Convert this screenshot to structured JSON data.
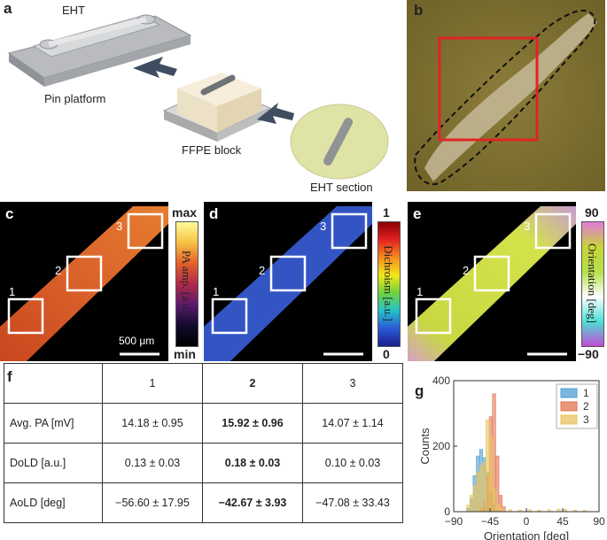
{
  "panel_a": {
    "label": "a",
    "eht": "EHT",
    "pin_platform": "Pin platform",
    "ffpe_block": "FFPE block",
    "eht_section": "EHT section"
  },
  "panel_b": {
    "label": "b"
  },
  "panel_c": {
    "label": "c",
    "roi": [
      "1",
      "2",
      "3"
    ],
    "cb_max": "max",
    "cb_min": "min",
    "cb_label": "PA amp. [a.u.]",
    "scalebar": "500 μm"
  },
  "panel_d": {
    "label": "d",
    "roi": [
      "1",
      "2",
      "3"
    ],
    "cb_max": "1",
    "cb_min": "0",
    "cb_label": "Dichroism [a.u.]"
  },
  "panel_e": {
    "label": "e",
    "roi": [
      "1",
      "2",
      "3"
    ],
    "cb_max": "90",
    "cb_min": "−90",
    "cb_label": "Orientation [deg]"
  },
  "panel_f": {
    "label": "f",
    "header": [
      "",
      "1",
      "2",
      "3"
    ],
    "rows": [
      [
        "Avg. PA [mV]",
        "14.18 ± 0.95",
        "15.92 ± 0.96",
        "14.07 ± 1.14"
      ],
      [
        "DoLD [a.u.]",
        "0.13 ± 0.03",
        "0.18 ± 0.03",
        "0.10 ± 0.03"
      ],
      [
        "AoLD [deg]",
        "−56.60 ± 17.95",
        "−42.67 ± 3.93",
        "−47.08 ± 33.43"
      ]
    ]
  },
  "panel_g": {
    "label": "g"
  },
  "chart_data": {
    "type": "bar",
    "xlabel": "Orientation [deg]",
    "ylabel": "Counts",
    "xlim": [
      -90,
      90
    ],
    "ylim": [
      0,
      400
    ],
    "xticks": [
      "−90",
      "−45",
      "0",
      "45",
      "90"
    ],
    "yticks": [
      "0",
      "200",
      "400"
    ],
    "legend_position": "top-right",
    "bin_width": 4,
    "series": [
      {
        "name": "1",
        "color": "#4f9fd3",
        "bins": [
          [
            -74,
            10
          ],
          [
            -70,
            40
          ],
          [
            -66,
            110
          ],
          [
            -62,
            170
          ],
          [
            -58,
            190
          ],
          [
            -54,
            165
          ],
          [
            -50,
            120
          ],
          [
            -46,
            60
          ],
          [
            -42,
            20
          ],
          [
            -38,
            5
          ]
        ]
      },
      {
        "name": "2",
        "color": "#e0744f",
        "bins": [
          [
            -58,
            10
          ],
          [
            -54,
            30
          ],
          [
            -50,
            110
          ],
          [
            -46,
            290
          ],
          [
            -42,
            360
          ],
          [
            -38,
            170
          ],
          [
            -34,
            50
          ],
          [
            -30,
            15
          ]
        ]
      },
      {
        "name": "3",
        "color": "#e9c35c",
        "bins": [
          [
            -74,
            20
          ],
          [
            -70,
            50
          ],
          [
            -66,
            80
          ],
          [
            -62,
            120
          ],
          [
            -58,
            140
          ],
          [
            -54,
            150
          ],
          [
            -50,
            280
          ],
          [
            -46,
            230
          ],
          [
            -42,
            70
          ],
          [
            -38,
            25
          ],
          [
            -34,
            12
          ],
          [
            -22,
            6
          ],
          [
            -10,
            5
          ],
          [
            2,
            6
          ],
          [
            14,
            5
          ],
          [
            26,
            6
          ],
          [
            38,
            8
          ],
          [
            46,
            7
          ],
          [
            58,
            5
          ],
          [
            70,
            4
          ]
        ]
      }
    ]
  }
}
